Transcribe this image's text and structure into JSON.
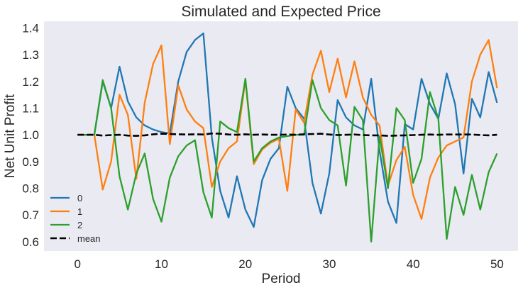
{
  "chart_data": {
    "type": "line",
    "title": "Simulated and Expected Price",
    "xlabel": "Period",
    "ylabel": "Net Unit Profit",
    "xlim": [
      -4,
      52.5
    ],
    "ylim": [
      0.565,
      1.425
    ],
    "xticks": [
      0,
      10,
      20,
      30,
      40,
      50
    ],
    "yticks": [
      0.6,
      0.7,
      0.8,
      0.9,
      1.0,
      1.1,
      1.2,
      1.3,
      1.4
    ],
    "ytick_labels": [
      "0.6",
      "0.7",
      "0.8",
      "0.9",
      "1.0",
      "1.1",
      "1.2",
      "1.3",
      "1.4"
    ],
    "grid": false,
    "background": "#eaeaf2",
    "legend_position": "lower-left",
    "x": [
      0,
      1,
      2,
      3,
      4,
      5,
      6,
      7,
      8,
      9,
      10,
      11,
      12,
      13,
      14,
      15,
      16,
      17,
      18,
      19,
      20,
      21,
      22,
      23,
      24,
      25,
      26,
      27,
      28,
      29,
      30,
      31,
      32,
      33,
      34,
      35,
      36,
      37,
      38,
      39,
      40,
      41,
      42,
      43,
      44,
      45,
      46,
      47,
      48,
      49,
      50
    ],
    "series": [
      {
        "name": "0",
        "color": "#1f77b4",
        "style": "solid",
        "values": [
          1.0,
          1.0,
          1.0,
          1.2,
          1.1,
          1.255,
          1.125,
          1.065,
          1.035,
          1.02,
          1.01,
          1.005,
          1.2,
          1.31,
          1.355,
          1.38,
          0.99,
          0.79,
          0.69,
          0.845,
          0.72,
          0.655,
          0.83,
          0.91,
          0.95,
          1.18,
          1.1,
          1.06,
          0.82,
          0.705,
          0.855,
          1.13,
          1.065,
          1.035,
          1.02,
          1.21,
          0.94,
          0.75,
          0.67,
          1.04,
          1.02,
          1.21,
          1.115,
          1.06,
          1.23,
          1.115,
          0.855,
          1.135,
          1.065,
          1.235,
          1.12
        ]
      },
      {
        "name": "1",
        "color": "#ff7f0e",
        "style": "solid",
        "values": [
          1.0,
          1.0,
          1.0,
          0.795,
          0.9,
          1.15,
          1.075,
          0.835,
          1.12,
          1.265,
          1.335,
          0.965,
          1.185,
          1.095,
          1.05,
          1.025,
          0.805,
          0.9,
          0.95,
          0.975,
          1.205,
          0.89,
          0.945,
          0.97,
          0.985,
          0.79,
          1.095,
          1.045,
          1.225,
          1.315,
          1.16,
          1.285,
          1.14,
          1.275,
          1.14,
          1.075,
          1.035,
          0.81,
          0.905,
          0.955,
          0.775,
          0.685,
          0.84,
          0.915,
          0.96,
          0.975,
          0.99,
          1.2,
          1.3,
          1.355,
          1.175
        ]
      },
      {
        "name": "2",
        "color": "#2ca02c",
        "style": "solid",
        "values": [
          1.0,
          1.0,
          1.0,
          1.205,
          1.1,
          0.845,
          0.72,
          0.855,
          0.93,
          0.76,
          0.675,
          0.84,
          0.92,
          0.96,
          0.98,
          0.785,
          0.69,
          1.05,
          1.025,
          1.01,
          1.21,
          0.9,
          0.95,
          0.975,
          0.99,
          0.995,
          1.0,
          1.0,
          1.205,
          1.1,
          1.055,
          1.035,
          0.81,
          1.105,
          1.055,
          0.6,
          0.995,
          0.8,
          1.1,
          1.055,
          0.82,
          0.91,
          1.16,
          1.06,
          0.61,
          0.805,
          0.7,
          0.85,
          0.72,
          0.86,
          0.93
        ]
      },
      {
        "name": "mean",
        "color": "#000000",
        "style": "dashed",
        "values": [
          1.0,
          1.0,
          1.0,
          0.997,
          0.999,
          1.0,
          0.997,
          0.996,
          0.998,
          1.002,
          1.004,
          1.003,
          1.002,
          1.001,
          1.002,
          1.001,
          1.005,
          1.004,
          1.001,
          1.0,
          1.002,
          1.0,
          1.001,
          1.0,
          1.0,
          1.001,
          1.0,
          1.002,
          1.003,
          1.004,
          1.001,
          0.999,
          1.0,
          1.001,
          0.999,
          0.998,
          0.998,
          0.996,
          0.997,
          0.998,
          0.999,
          1.0,
          1.001,
          1.0,
          1.001,
          1.001,
          1.001,
          1.001,
          0.999,
          0.998,
          1.0
        ]
      }
    ]
  }
}
